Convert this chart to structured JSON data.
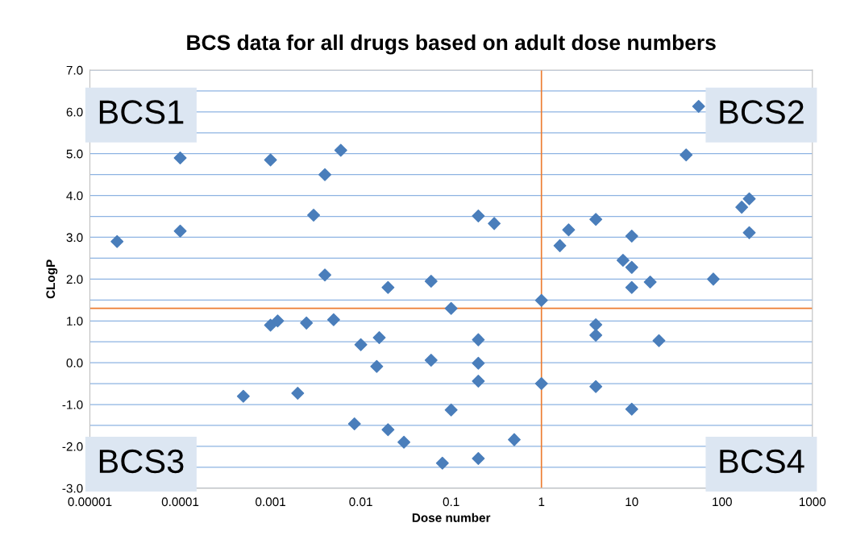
{
  "chart_data": {
    "type": "scatter",
    "title": "BCS data for all drugs based on adult dose numbers",
    "xlabel": "Dose number",
    "ylabel": "CLogP",
    "log": "x",
    "marker": "diamond",
    "grid": "y",
    "series": [
      {
        "color": "#4a7ebb",
        "x": [
          2e-05,
          0.0001,
          0.0001,
          0.0005,
          0.001,
          0.001,
          0.0012,
          0.002,
          0.0025,
          0.003,
          0.004,
          0.004,
          0.005,
          0.006,
          0.0085,
          0.01,
          0.015,
          0.016,
          0.02,
          0.02,
          0.03,
          0.06,
          0.06,
          0.08,
          0.1,
          0.1,
          0.2,
          0.2,
          0.2,
          0.2,
          0.2,
          0.3,
          0.5,
          1,
          1,
          1.6,
          2,
          4,
          4,
          4,
          4,
          8,
          10,
          10,
          10,
          10,
          16,
          20,
          40,
          55,
          80,
          165,
          200,
          200
        ],
        "values": [
          2.9,
          4.9,
          3.15,
          -0.8,
          4.85,
          0.9,
          1.0,
          -0.73,
          0.95,
          3.53,
          4.5,
          2.1,
          1.03,
          5.08,
          -1.46,
          0.43,
          -0.09,
          0.6,
          1.8,
          -1.6,
          -1.9,
          1.95,
          0.06,
          -2.4,
          1.3,
          -1.13,
          3.51,
          0.55,
          -0.01,
          -0.44,
          -2.29,
          3.33,
          -1.84,
          1.49,
          -0.5,
          2.8,
          3.18,
          3.43,
          0.91,
          0.66,
          -0.57,
          2.45,
          3.03,
          2.28,
          1.8,
          -1.11,
          1.93,
          0.53,
          4.97,
          6.13,
          2.0,
          3.72,
          3.92,
          3.11
        ]
      }
    ],
    "xlim": [
      1e-05,
      1000
    ],
    "xticks": [
      {
        "value": 1e-05,
        "label": "0.00001"
      },
      {
        "value": 0.0001,
        "label": "0.0001"
      },
      {
        "value": 0.001,
        "label": "0.001"
      },
      {
        "value": 0.01,
        "label": "0.01"
      },
      {
        "value": 0.1,
        "label": "0.1"
      },
      {
        "value": 1,
        "label": "1"
      },
      {
        "value": 10,
        "label": "10"
      },
      {
        "value": 100,
        "label": "100"
      },
      {
        "value": 1000,
        "label": "1000"
      }
    ],
    "ylim": [
      -3,
      7
    ],
    "yticks": [
      {
        "value": -3,
        "label": "-3.0"
      },
      {
        "value": -2,
        "label": "-2.0"
      },
      {
        "value": -1,
        "label": "-1.0"
      },
      {
        "value": 0,
        "label": "0.0"
      },
      {
        "value": 1,
        "label": "1.0"
      },
      {
        "value": 2,
        "label": "2.0"
      },
      {
        "value": 3,
        "label": "3.0"
      },
      {
        "value": 4,
        "label": "4.0"
      },
      {
        "value": 5,
        "label": "5.0"
      },
      {
        "value": 6,
        "label": "6.0"
      },
      {
        "value": 7,
        "label": "7.0"
      }
    ],
    "ref_lines": [
      {
        "axis": "x",
        "value": 1,
        "color": "#ed7d31"
      },
      {
        "axis": "y",
        "value": 1.3,
        "color": "#ed7d31"
      }
    ],
    "annotations": [
      "BCS1",
      "BCS2",
      "BCS3",
      "BCS4"
    ]
  }
}
